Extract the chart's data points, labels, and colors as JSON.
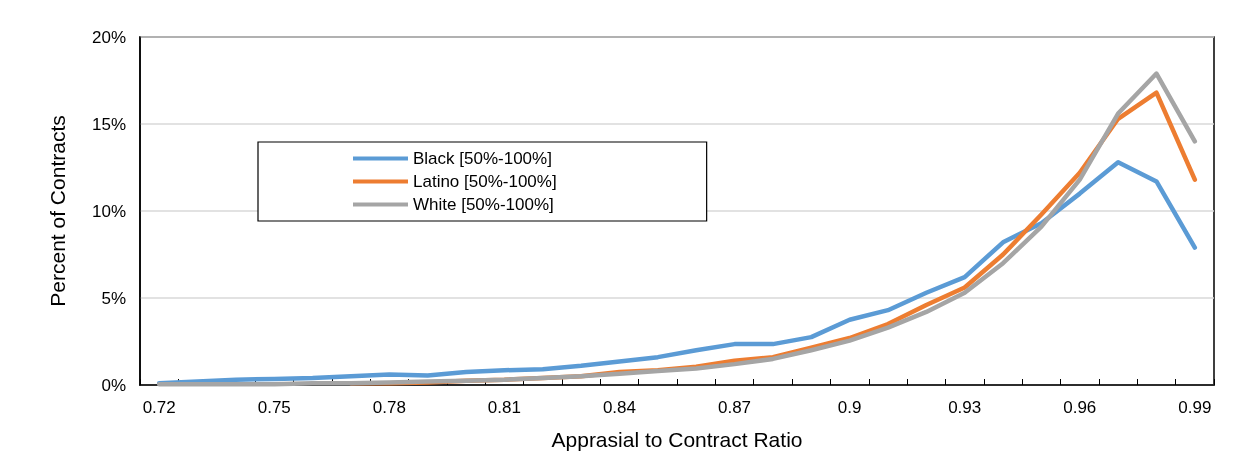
{
  "chart_data": {
    "type": "line",
    "xlabel": "Apprasial to Contract Ratio",
    "ylabel": "Percent of Contracts",
    "categories": [
      "0.72",
      null,
      null,
      "0.75",
      null,
      null,
      "0.78",
      null,
      null,
      "0.81",
      null,
      null,
      "0.84",
      null,
      null,
      "0.87",
      null,
      null,
      "0.9",
      null,
      null,
      "0.93",
      null,
      null,
      "0.96",
      null,
      null,
      "0.99"
    ],
    "series": [
      {
        "name": "Black [50%-100%]",
        "color": "#5b9bd5",
        "values": [
          0.1,
          0.2,
          0.3,
          0.35,
          0.4,
          0.5,
          0.6,
          0.55,
          0.75,
          0.85,
          0.9,
          1.1,
          1.35,
          1.6,
          2.0,
          2.35,
          2.35,
          2.75,
          3.75,
          4.3,
          5.3,
          6.2,
          8.2,
          9.3,
          11.0,
          12.8,
          11.7,
          7.9
        ]
      },
      {
        "name": "Latino [50%-100%]",
        "color": "#ed7d31",
        "values": [
          null,
          null,
          null,
          null,
          null,
          0.1,
          0.1,
          0.15,
          0.25,
          0.3,
          0.4,
          0.5,
          0.75,
          0.85,
          1.05,
          1.4,
          1.6,
          2.15,
          2.7,
          3.5,
          4.6,
          5.6,
          7.5,
          9.8,
          12.2,
          15.3,
          16.8,
          11.8
        ]
      },
      {
        "name": "White [50%-100%]",
        "color": "#a5a5a5",
        "values": [
          0.05,
          0.05,
          0.05,
          0.05,
          0.1,
          0.1,
          0.15,
          0.2,
          0.25,
          0.3,
          0.4,
          0.5,
          0.65,
          0.8,
          0.95,
          1.2,
          1.5,
          2.0,
          2.55,
          3.3,
          4.2,
          5.3,
          7.0,
          9.1,
          11.8,
          15.6,
          17.9,
          14.0
        ]
      }
    ],
    "ylim": [
      0,
      20
    ],
    "yticks": [
      {
        "value": 0,
        "label": "0%"
      },
      {
        "value": 5,
        "label": "5%"
      },
      {
        "value": 10,
        "label": "10%"
      },
      {
        "value": 15,
        "label": "15%"
      },
      {
        "value": 20,
        "label": "20%"
      }
    ],
    "grid": "y",
    "legend": "left",
    "marker": "none",
    "line_style": "solid"
  }
}
